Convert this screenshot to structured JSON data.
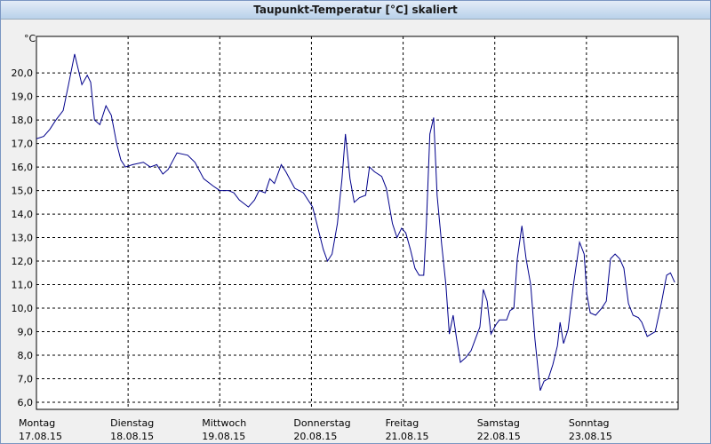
{
  "chart_data": {
    "type": "line",
    "title": "Taupunkt-Temperatur [°C] skaliert",
    "y_label": "°C",
    "color": "#00008b",
    "grid": true,
    "xlim": [
      0,
      168
    ],
    "ylim": [
      5.7,
      21.55
    ],
    "xticks": [
      {
        "value": 0,
        "label": "Montag",
        "sublabel": "17.08.15"
      },
      {
        "value": 24,
        "label": "Dienstag",
        "sublabel": "18.08.15"
      },
      {
        "value": 48,
        "label": "Mittwoch",
        "sublabel": "19.08.15"
      },
      {
        "value": 72,
        "label": "Donnerstag",
        "sublabel": "20.08.15"
      },
      {
        "value": 96,
        "label": "Freitag",
        "sublabel": "21.08.15"
      },
      {
        "value": 120,
        "label": "Samstag",
        "sublabel": "22.08.15"
      },
      {
        "value": 144,
        "label": "Sonntag",
        "sublabel": "23.08.15"
      }
    ],
    "yticks": [
      {
        "value": 6,
        "label": "6,0"
      },
      {
        "value": 7,
        "label": "7,0"
      },
      {
        "value": 8,
        "label": "8,0"
      },
      {
        "value": 9,
        "label": "9,0"
      },
      {
        "value": 10,
        "label": "10,0"
      },
      {
        "value": 11,
        "label": "11,0"
      },
      {
        "value": 12,
        "label": "12,0"
      },
      {
        "value": 13,
        "label": "13,0"
      },
      {
        "value": 14,
        "label": "14,0"
      },
      {
        "value": 15,
        "label": "15,0"
      },
      {
        "value": 16,
        "label": "16,0"
      },
      {
        "value": 17,
        "label": "17,0"
      },
      {
        "value": 18,
        "label": "18,0"
      },
      {
        "value": 19,
        "label": "19,0"
      },
      {
        "value": 20,
        "label": "20,0"
      }
    ],
    "x": [
      0,
      1.9,
      3.5,
      5.1,
      7,
      8.4,
      10,
      11.9,
      13.3,
      14.2,
      15.2,
      16.6,
      18.2,
      19.6,
      21,
      22.1,
      23.3,
      25.2,
      28,
      29.8,
      31.5,
      33.1,
      34.5,
      36.8,
      39.6,
      41.5,
      43.8,
      46.2,
      48,
      50.3,
      51.7,
      53.1,
      55.5,
      57.1,
      58.3,
      59.9,
      61.1,
      62.3,
      64.1,
      65.3,
      67.6,
      69.9,
      72.3,
      73.4,
      75.1,
      76.2,
      77.4,
      78.8,
      80,
      80.9,
      82.1,
      83.2,
      84.6,
      86.2,
      87.2,
      88.5,
      90.4,
      91.6,
      93.2,
      94.4,
      95.6,
      96.7,
      97.9,
      99.1,
      100.2,
      101.4,
      102.1,
      103,
      104,
      104.9,
      106.1,
      107.2,
      108.1,
      109.1,
      110,
      111,
      112.4,
      113.8,
      115.4,
      116.1,
      117,
      118,
      119,
      120.3,
      121.2,
      123.1,
      124,
      125,
      125.9,
      127.1,
      128.2,
      129.4,
      130.5,
      131.9,
      132.9,
      134,
      135.2,
      136.4,
      137.1,
      138,
      139.2,
      140.6,
      142.2,
      143.4,
      144.1,
      145,
      146.4,
      148,
      149.2,
      150.3,
      151.5,
      152.7,
      153.8,
      155,
      156.2,
      157.6,
      158.5,
      159.9,
      162,
      163.6,
      165,
      166,
      167.1
    ],
    "values": [
      17.2,
      17.3,
      17.6,
      18.0,
      18.4,
      19.5,
      20.8,
      19.5,
      19.9,
      19.6,
      18.0,
      17.8,
      18.6,
      18.2,
      17.0,
      16.3,
      16.0,
      16.1,
      16.2,
      16.0,
      16.1,
      15.7,
      15.9,
      16.6,
      16.5,
      16.2,
      15.5,
      15.2,
      15.0,
      15.0,
      14.9,
      14.6,
      14.3,
      14.6,
      15.0,
      14.9,
      15.5,
      15.3,
      16.1,
      15.8,
      15.1,
      14.9,
      14.3,
      13.6,
      12.5,
      12.0,
      12.3,
      13.6,
      15.5,
      17.4,
      15.5,
      14.5,
      14.7,
      14.8,
      16.0,
      15.8,
      15.6,
      15.1,
      13.6,
      13.0,
      13.4,
      13.2,
      12.5,
      11.7,
      11.4,
      11.4,
      13.6,
      17.4,
      18.1,
      14.8,
      12.7,
      11.0,
      8.9,
      9.7,
      8.7,
      7.7,
      7.9,
      8.2,
      8.9,
      9.2,
      10.8,
      10.3,
      8.9,
      9.3,
      9.5,
      9.5,
      9.9,
      10.0,
      12.1,
      13.5,
      12.1,
      11.0,
      8.7,
      6.5,
      6.9,
      7.0,
      7.6,
      8.4,
      9.4,
      8.5,
      9.1,
      11.0,
      12.8,
      12.3,
      10.6,
      9.8,
      9.7,
      10.0,
      10.3,
      12.1,
      12.3,
      12.1,
      11.7,
      10.2,
      9.7,
      9.6,
      9.4,
      8.8,
      9.0,
      10.2,
      11.4,
      11.5,
      11.1
    ]
  }
}
